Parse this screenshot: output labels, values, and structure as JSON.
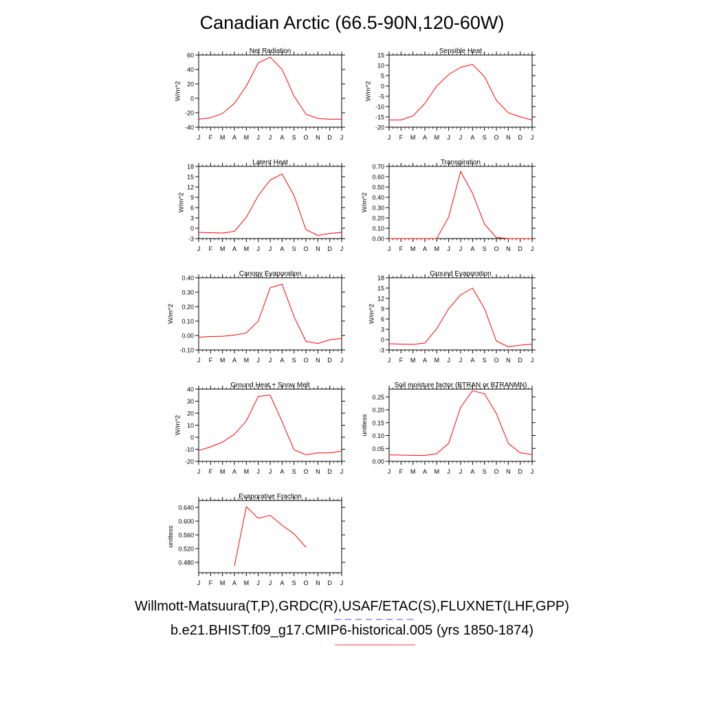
{
  "title": "Canadian Arctic (66.5-90N,120-60W)",
  "legend": {
    "obs_label": "Willmott-Matsuura(T,P),GRDC(R),USAF/ETAC(S),FLUXNET(LHF,GPP)",
    "model_label": "b.e21.BHIST.f09_g17.CMIP6-historical.005 (yrs 1850-1874)",
    "obs_color": "#6f6ff0",
    "model_color": "#ff6060"
  },
  "colors": {
    "series": "#ff0000",
    "axis": "#000000"
  },
  "chart_data": [
    {
      "type": "line",
      "title": "Net Radiation",
      "ylabel": "W/m^2",
      "categories": [
        "J",
        "F",
        "M",
        "A",
        "M",
        "J",
        "J",
        "A",
        "S",
        "O",
        "N",
        "D",
        "J"
      ],
      "ylim": [
        -40,
        60
      ],
      "yticks": [
        -40,
        -20,
        0,
        20,
        40,
        60
      ],
      "ytick_labels": [
        "-40",
        "-20",
        "0",
        "20",
        "40",
        "60"
      ],
      "values": [
        -29,
        -27,
        -21,
        -7,
        17,
        49,
        57,
        40,
        3,
        -22,
        -28,
        -29,
        -29
      ]
    },
    {
      "type": "line",
      "title": "Sensible Heat",
      "ylabel": "W/m^2",
      "categories": [
        "J",
        "F",
        "M",
        "A",
        "M",
        "J",
        "J",
        "A",
        "S",
        "O",
        "N",
        "D",
        "J"
      ],
      "ylim": [
        -20,
        15
      ],
      "yticks": [
        -20,
        -15,
        -10,
        -5,
        0,
        5,
        10,
        15
      ],
      "ytick_labels": [
        "-20",
        "-15",
        "-10",
        "-5",
        "0",
        "5",
        "10",
        "15"
      ],
      "values": [
        -16.5,
        -16.5,
        -14.5,
        -8.5,
        0,
        5.5,
        9,
        10.5,
        4.5,
        -7,
        -13,
        -15,
        -16.5
      ]
    },
    {
      "type": "line",
      "title": "Latent Heat",
      "ylabel": "W/m^2",
      "categories": [
        "J",
        "F",
        "M",
        "A",
        "M",
        "J",
        "J",
        "A",
        "S",
        "O",
        "N",
        "D",
        "J"
      ],
      "ylim": [
        -3,
        18
      ],
      "yticks": [
        -3,
        0,
        3,
        6,
        9,
        12,
        15,
        18
      ],
      "ytick_labels": [
        "-3",
        "0",
        "3",
        "6",
        "9",
        "12",
        "15",
        "18"
      ],
      "values": [
        -1.2,
        -1.3,
        -1.4,
        -0.9,
        3.2,
        9.5,
        14,
        15.8,
        9.5,
        -0.4,
        -2.1,
        -1.5,
        -1.2
      ]
    },
    {
      "type": "line",
      "title": "Transpiration",
      "ylabel": "W/m^2",
      "categories": [
        "J",
        "F",
        "M",
        "A",
        "M",
        "J",
        "J",
        "A",
        "S",
        "O",
        "N",
        "D",
        "J"
      ],
      "ylim": [
        0,
        0.7
      ],
      "yticks": [
        0,
        0.1,
        0.2,
        0.3,
        0.4,
        0.5,
        0.6,
        0.7
      ],
      "ytick_labels": [
        "0.00",
        "0.10",
        "0.20",
        "0.30",
        "0.40",
        "0.50",
        "0.60",
        "0.70"
      ],
      "values": [
        0,
        0,
        0,
        0,
        0.001,
        0.21,
        0.65,
        0.44,
        0.14,
        0.01,
        0,
        0,
        0
      ]
    },
    {
      "type": "line",
      "title": "Canopy Evaporation",
      "ylabel": "W/m^2",
      "categories": [
        "J",
        "F",
        "M",
        "A",
        "M",
        "J",
        "J",
        "A",
        "S",
        "O",
        "N",
        "D",
        "J"
      ],
      "ylim": [
        -0.1,
        0.4
      ],
      "yticks": [
        -0.1,
        0,
        0.1,
        0.2,
        0.3,
        0.4
      ],
      "ytick_labels": [
        "-0.10",
        "0.00",
        "0.10",
        "0.20",
        "0.30",
        "0.40"
      ],
      "values": [
        -0.012,
        -0.007,
        -0.005,
        0.003,
        0.018,
        0.1,
        0.33,
        0.355,
        0.13,
        -0.04,
        -0.055,
        -0.03,
        -0.02
      ]
    },
    {
      "type": "line",
      "title": "Ground Evaporation",
      "ylabel": "W/m^2",
      "categories": [
        "J",
        "F",
        "M",
        "A",
        "M",
        "J",
        "J",
        "A",
        "S",
        "O",
        "N",
        "D",
        "J"
      ],
      "ylim": [
        -3,
        18
      ],
      "yticks": [
        -3,
        0,
        3,
        6,
        9,
        12,
        15,
        18
      ],
      "ytick_labels": [
        "-3",
        "0",
        "3",
        "6",
        "9",
        "12",
        "15",
        "18"
      ],
      "values": [
        -1.2,
        -1.3,
        -1.4,
        -1.0,
        3.2,
        9,
        13,
        15,
        9,
        -0.4,
        -2.1,
        -1.6,
        -1.3
      ]
    },
    {
      "type": "line",
      "title": "Ground Heat + Snow Melt",
      "ylabel": "W/m^2",
      "categories": [
        "J",
        "F",
        "M",
        "A",
        "M",
        "J",
        "J",
        "A",
        "S",
        "O",
        "N",
        "D",
        "J"
      ],
      "ylim": [
        -20,
        40
      ],
      "yticks": [
        -20,
        -10,
        0,
        10,
        20,
        30,
        40
      ],
      "ytick_labels": [
        "-20",
        "-10",
        "0",
        "10",
        "20",
        "30",
        "40"
      ],
      "values": [
        -11,
        -8,
        -4,
        2.5,
        13.5,
        34,
        35,
        13,
        -10.5,
        -14.5,
        -13,
        -13,
        -11.5
      ]
    },
    {
      "type": "line",
      "title": "Soil moisture factor (BTRAN or BTRANMN)",
      "ylabel": "unitless",
      "categories": [
        "J",
        "F",
        "M",
        "A",
        "M",
        "J",
        "J",
        "A",
        "S",
        "O",
        "N",
        "D",
        "J"
      ],
      "ylim": [
        0,
        0.28
      ],
      "yticks": [
        0,
        0.05,
        0.1,
        0.15,
        0.2,
        0.25
      ],
      "ytick_labels": [
        "0.00",
        "0.05",
        "0.10",
        "0.15",
        "0.20",
        "0.25"
      ],
      "values": [
        0.025,
        0.024,
        0.023,
        0.023,
        0.03,
        0.07,
        0.21,
        0.274,
        0.262,
        0.185,
        0.07,
        0.033,
        0.026
      ]
    },
    {
      "type": "line",
      "title": "Evaporative Fraction",
      "ylabel": "unitless",
      "categories": [
        "J",
        "F",
        "M",
        "A",
        "M",
        "J",
        "J",
        "A",
        "S",
        "O",
        "N",
        "D",
        "J"
      ],
      "ylim": [
        0.45,
        0.66
      ],
      "yticks": [
        0.48,
        0.52,
        0.56,
        0.6,
        0.64
      ],
      "ytick_labels": [
        "0.480",
        "0.520",
        "0.560",
        "0.600",
        "0.640"
      ],
      "values": [
        null,
        null,
        null,
        0.47,
        0.642,
        0.608,
        0.617,
        0.588,
        0.563,
        0.524,
        null,
        null,
        null
      ]
    }
  ]
}
